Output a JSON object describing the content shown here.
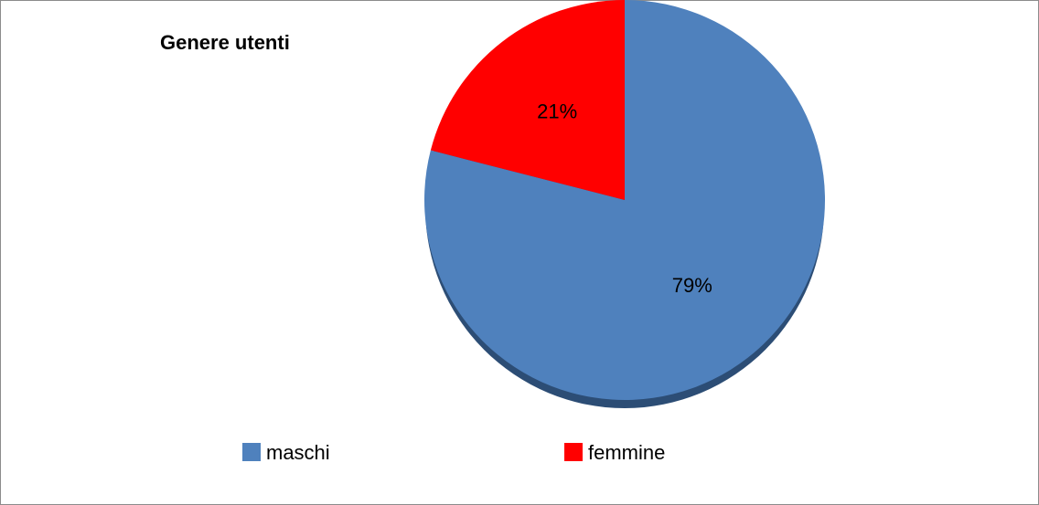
{
  "chart_data": {
    "type": "pie",
    "title": "Genere utenti",
    "categories": [
      "maschi",
      "femmine"
    ],
    "values": [
      79,
      21
    ],
    "value_labels": [
      "79%",
      "21%"
    ],
    "colors": [
      "#4f81bd",
      "#ff0000"
    ],
    "legend": "bottom"
  }
}
